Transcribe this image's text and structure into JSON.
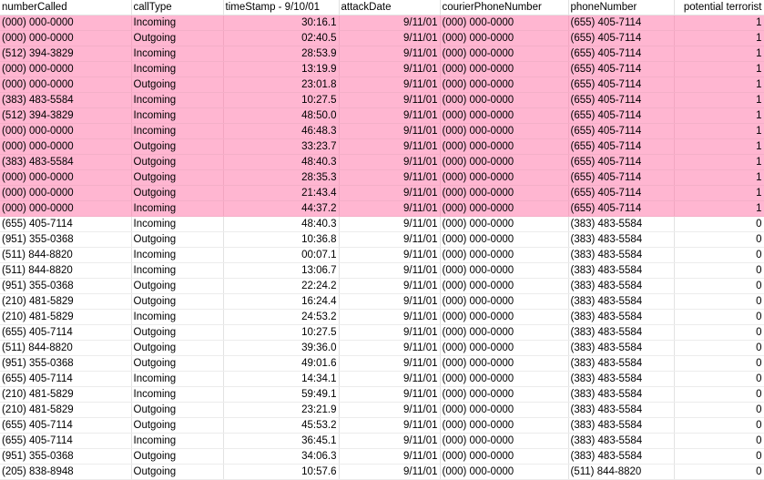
{
  "sheet": {
    "highlight_color": "#ffb6d1",
    "headers": [
      "numberCalled",
      "callType",
      "timeStamp - 9/10/01",
      "attackDate",
      "courierPhoneNumber",
      "phoneNumber",
      "potential terrorist"
    ],
    "rows": [
      {
        "numberCalled": "(000) 000-0000",
        "callType": "Incoming",
        "timeStamp": "30:16.1",
        "attackDate": "9/11/01",
        "courierPhoneNumber": "(000) 000-0000",
        "phoneNumber": "(655) 405-7114",
        "potentialTerrorist": "1"
      },
      {
        "numberCalled": "(000) 000-0000",
        "callType": "Outgoing",
        "timeStamp": "02:40.5",
        "attackDate": "9/11/01",
        "courierPhoneNumber": "(000) 000-0000",
        "phoneNumber": "(655) 405-7114",
        "potentialTerrorist": "1"
      },
      {
        "numberCalled": "(512) 394-3829",
        "callType": "Incoming",
        "timeStamp": "28:53.9",
        "attackDate": "9/11/01",
        "courierPhoneNumber": "(000) 000-0000",
        "phoneNumber": "(655) 405-7114",
        "potentialTerrorist": "1"
      },
      {
        "numberCalled": "(000) 000-0000",
        "callType": "Incoming",
        "timeStamp": "13:19.9",
        "attackDate": "9/11/01",
        "courierPhoneNumber": "(000) 000-0000",
        "phoneNumber": "(655) 405-7114",
        "potentialTerrorist": "1"
      },
      {
        "numberCalled": "(000) 000-0000",
        "callType": "Outgoing",
        "timeStamp": "23:01.8",
        "attackDate": "9/11/01",
        "courierPhoneNumber": "(000) 000-0000",
        "phoneNumber": "(655) 405-7114",
        "potentialTerrorist": "1"
      },
      {
        "numberCalled": "(383) 483-5584",
        "callType": "Incoming",
        "timeStamp": "10:27.5",
        "attackDate": "9/11/01",
        "courierPhoneNumber": "(000) 000-0000",
        "phoneNumber": "(655) 405-7114",
        "potentialTerrorist": "1"
      },
      {
        "numberCalled": "(512) 394-3829",
        "callType": "Incoming",
        "timeStamp": "48:50.0",
        "attackDate": "9/11/01",
        "courierPhoneNumber": "(000) 000-0000",
        "phoneNumber": "(655) 405-7114",
        "potentialTerrorist": "1"
      },
      {
        "numberCalled": "(000) 000-0000",
        "callType": "Incoming",
        "timeStamp": "46:48.3",
        "attackDate": "9/11/01",
        "courierPhoneNumber": "(000) 000-0000",
        "phoneNumber": "(655) 405-7114",
        "potentialTerrorist": "1"
      },
      {
        "numberCalled": "(000) 000-0000",
        "callType": "Outgoing",
        "timeStamp": "33:23.7",
        "attackDate": "9/11/01",
        "courierPhoneNumber": "(000) 000-0000",
        "phoneNumber": "(655) 405-7114",
        "potentialTerrorist": "1"
      },
      {
        "numberCalled": "(383) 483-5584",
        "callType": "Outgoing",
        "timeStamp": "48:40.3",
        "attackDate": "9/11/01",
        "courierPhoneNumber": "(000) 000-0000",
        "phoneNumber": "(655) 405-7114",
        "potentialTerrorist": "1"
      },
      {
        "numberCalled": "(000) 000-0000",
        "callType": "Outgoing",
        "timeStamp": "28:35.3",
        "attackDate": "9/11/01",
        "courierPhoneNumber": "(000) 000-0000",
        "phoneNumber": "(655) 405-7114",
        "potentialTerrorist": "1"
      },
      {
        "numberCalled": "(000) 000-0000",
        "callType": "Outgoing",
        "timeStamp": "21:43.4",
        "attackDate": "9/11/01",
        "courierPhoneNumber": "(000) 000-0000",
        "phoneNumber": "(655) 405-7114",
        "potentialTerrorist": "1"
      },
      {
        "numberCalled": "(000) 000-0000",
        "callType": "Incoming",
        "timeStamp": "44:37.2",
        "attackDate": "9/11/01",
        "courierPhoneNumber": "(000) 000-0000",
        "phoneNumber": "(655) 405-7114",
        "potentialTerrorist": "1"
      },
      {
        "numberCalled": "(655) 405-7114",
        "callType": "Incoming",
        "timeStamp": "48:40.3",
        "attackDate": "9/11/01",
        "courierPhoneNumber": "(000) 000-0000",
        "phoneNumber": "(383) 483-5584",
        "potentialTerrorist": "0"
      },
      {
        "numberCalled": "(951) 355-0368",
        "callType": "Outgoing",
        "timeStamp": "10:36.8",
        "attackDate": "9/11/01",
        "courierPhoneNumber": "(000) 000-0000",
        "phoneNumber": "(383) 483-5584",
        "potentialTerrorist": "0"
      },
      {
        "numberCalled": "(511) 844-8820",
        "callType": "Incoming",
        "timeStamp": "00:07.1",
        "attackDate": "9/11/01",
        "courierPhoneNumber": "(000) 000-0000",
        "phoneNumber": "(383) 483-5584",
        "potentialTerrorist": "0"
      },
      {
        "numberCalled": "(511) 844-8820",
        "callType": "Incoming",
        "timeStamp": "13:06.7",
        "attackDate": "9/11/01",
        "courierPhoneNumber": "(000) 000-0000",
        "phoneNumber": "(383) 483-5584",
        "potentialTerrorist": "0"
      },
      {
        "numberCalled": "(951) 355-0368",
        "callType": "Outgoing",
        "timeStamp": "22:24.2",
        "attackDate": "9/11/01",
        "courierPhoneNumber": "(000) 000-0000",
        "phoneNumber": "(383) 483-5584",
        "potentialTerrorist": "0"
      },
      {
        "numberCalled": "(210) 481-5829",
        "callType": "Outgoing",
        "timeStamp": "16:24.4",
        "attackDate": "9/11/01",
        "courierPhoneNumber": "(000) 000-0000",
        "phoneNumber": "(383) 483-5584",
        "potentialTerrorist": "0"
      },
      {
        "numberCalled": "(210) 481-5829",
        "callType": "Incoming",
        "timeStamp": "24:53.2",
        "attackDate": "9/11/01",
        "courierPhoneNumber": "(000) 000-0000",
        "phoneNumber": "(383) 483-5584",
        "potentialTerrorist": "0"
      },
      {
        "numberCalled": "(655) 405-7114",
        "callType": "Outgoing",
        "timeStamp": "10:27.5",
        "attackDate": "9/11/01",
        "courierPhoneNumber": "(000) 000-0000",
        "phoneNumber": "(383) 483-5584",
        "potentialTerrorist": "0"
      },
      {
        "numberCalled": "(511) 844-8820",
        "callType": "Outgoing",
        "timeStamp": "39:36.0",
        "attackDate": "9/11/01",
        "courierPhoneNumber": "(000) 000-0000",
        "phoneNumber": "(383) 483-5584",
        "potentialTerrorist": "0"
      },
      {
        "numberCalled": "(951) 355-0368",
        "callType": "Outgoing",
        "timeStamp": "49:01.6",
        "attackDate": "9/11/01",
        "courierPhoneNumber": "(000) 000-0000",
        "phoneNumber": "(383) 483-5584",
        "potentialTerrorist": "0"
      },
      {
        "numberCalled": "(655) 405-7114",
        "callType": "Incoming",
        "timeStamp": "14:34.1",
        "attackDate": "9/11/01",
        "courierPhoneNumber": "(000) 000-0000",
        "phoneNumber": "(383) 483-5584",
        "potentialTerrorist": "0"
      },
      {
        "numberCalled": "(210) 481-5829",
        "callType": "Incoming",
        "timeStamp": "59:49.1",
        "attackDate": "9/11/01",
        "courierPhoneNumber": "(000) 000-0000",
        "phoneNumber": "(383) 483-5584",
        "potentialTerrorist": "0"
      },
      {
        "numberCalled": "(210) 481-5829",
        "callType": "Outgoing",
        "timeStamp": "23:21.9",
        "attackDate": "9/11/01",
        "courierPhoneNumber": "(000) 000-0000",
        "phoneNumber": "(383) 483-5584",
        "potentialTerrorist": "0"
      },
      {
        "numberCalled": "(655) 405-7114",
        "callType": "Outgoing",
        "timeStamp": "45:53.2",
        "attackDate": "9/11/01",
        "courierPhoneNumber": "(000) 000-0000",
        "phoneNumber": "(383) 483-5584",
        "potentialTerrorist": "0"
      },
      {
        "numberCalled": "(655) 405-7114",
        "callType": "Incoming",
        "timeStamp": "36:45.1",
        "attackDate": "9/11/01",
        "courierPhoneNumber": "(000) 000-0000",
        "phoneNumber": "(383) 483-5584",
        "potentialTerrorist": "0"
      },
      {
        "numberCalled": "(951) 355-0368",
        "callType": "Outgoing",
        "timeStamp": "34:06.3",
        "attackDate": "9/11/01",
        "courierPhoneNumber": "(000) 000-0000",
        "phoneNumber": "(383) 483-5584",
        "potentialTerrorist": "0"
      },
      {
        "numberCalled": "(205) 838-8948",
        "callType": "Outgoing",
        "timeStamp": "10:57.6",
        "attackDate": "9/11/01",
        "courierPhoneNumber": "(000) 000-0000",
        "phoneNumber": "(511) 844-8820",
        "potentialTerrorist": "0"
      }
    ]
  }
}
